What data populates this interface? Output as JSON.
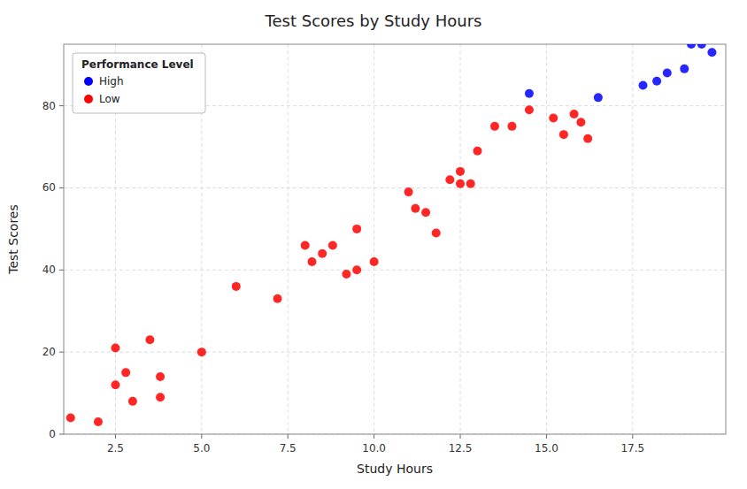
{
  "chart_data": {
    "type": "scatter",
    "title": "Test Scores by Study Hours",
    "xlabel": "Study Hours",
    "ylabel": "Test Scores",
    "xlim": [
      1.0,
      20.2
    ],
    "ylim": [
      0,
      95
    ],
    "xticks": [
      2.5,
      {
        "value": 5.0,
        "label": "5.0"
      },
      7.5,
      {
        "value": 10.0,
        "label": "10.0"
      },
      12.5,
      {
        "value": 15.0,
        "label": "15.0"
      },
      17.5
    ],
    "yticks": [
      0,
      20,
      40,
      60,
      80
    ],
    "grid": true,
    "legend": "upper-left",
    "legend_title": "Performance Level",
    "series": [
      {
        "name": "High",
        "color": "blue",
        "x": [
          14.5,
          16.5,
          17.8,
          18.2,
          18.5,
          19.0,
          19.2,
          19.5,
          19.8
        ],
        "values": [
          83,
          82,
          85,
          86,
          88,
          89,
          95,
          95,
          93
        ]
      },
      {
        "name": "Low",
        "color": "red",
        "x": [
          1.2,
          2.0,
          2.5,
          2.5,
          2.8,
          3.0,
          3.5,
          3.8,
          3.8,
          5.0,
          6.0,
          7.2,
          8.0,
          8.2,
          8.5,
          8.8,
          9.2,
          9.5,
          9.5,
          10.0,
          11.0,
          11.2,
          11.5,
          11.8,
          12.2,
          12.5,
          12.5,
          12.8,
          13.0,
          13.5,
          14.0,
          14.5,
          15.2,
          15.5,
          15.8,
          16.0,
          16.2
        ],
        "values": [
          4,
          3,
          21,
          12,
          15,
          8,
          23,
          14,
          9,
          20,
          36,
          33,
          46,
          42,
          44,
          46,
          39,
          40,
          50,
          42,
          59,
          55,
          54,
          49,
          62,
          61,
          64,
          61,
          69,
          75,
          75,
          79,
          77,
          73,
          78,
          76,
          72
        ]
      }
    ]
  }
}
